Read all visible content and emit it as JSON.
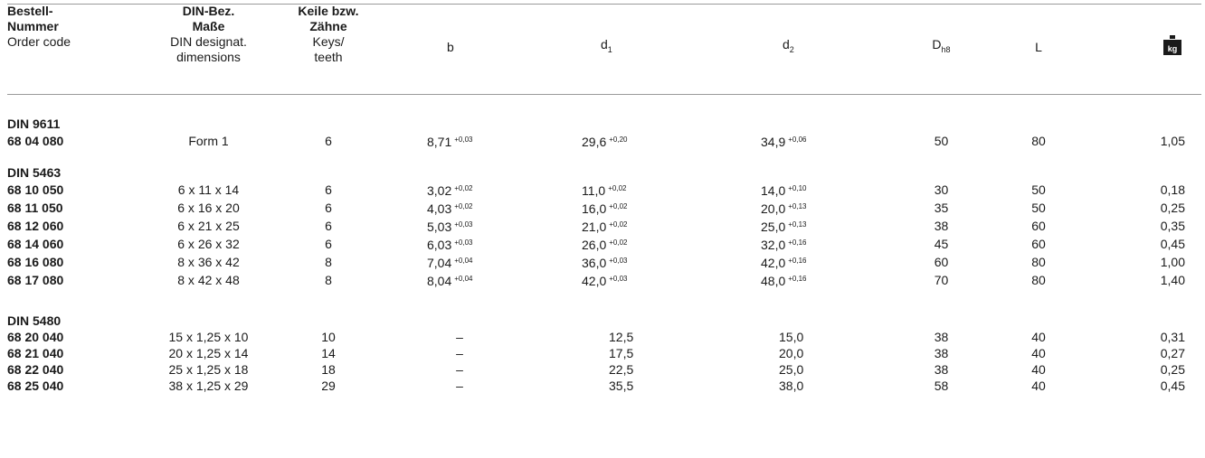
{
  "header": {
    "order_de_1": "Bestell-",
    "order_de_2": "Nummer",
    "order_en": "Order code",
    "din_de_1": "DIN-Bez.",
    "din_de_2": "Maße",
    "din_en_1": "DIN designat.",
    "din_en_2": "dimensions",
    "keys_de_1": "Keile bzw.",
    "keys_de_2": "Zähne",
    "keys_en_1": "Keys/",
    "keys_en_2": "teeth",
    "b": "b",
    "d1_base": "d",
    "d1_sub": "1",
    "d2_base": "d",
    "d2_sub": "2",
    "D_base": "D",
    "D_sub": "h8",
    "L": "L",
    "weight_icon_label": "kg",
    "weight_icon": "weight-icon"
  },
  "groups": [
    {
      "title": "DIN 9611",
      "rows": [
        {
          "code": "68 04 080",
          "desig": "Form 1",
          "keys": "6",
          "b": "8,71",
          "b_tol": "+0,03",
          "d1": "29,6",
          "d1_tol": "+0,20",
          "d2": "34,9",
          "d2_tol": "+0,06",
          "D": "50",
          "L": "80",
          "kg": "1,05"
        }
      ]
    },
    {
      "title": "DIN 5463",
      "rows": [
        {
          "code": "68 10 050",
          "desig": "6 x 11 x 14",
          "keys": "6",
          "b": "3,02",
          "b_tol": "+0,02",
          "d1": "11,0",
          "d1_tol": "+0,02",
          "d2": "14,0",
          "d2_tol": "+0,10",
          "D": "30",
          "L": "50",
          "kg": "0,18"
        },
        {
          "code": "68 11 050",
          "desig": "6 x 16 x 20",
          "keys": "6",
          "b": "4,03",
          "b_tol": "+0,02",
          "d1": "16,0",
          "d1_tol": "+0,02",
          "d2": "20,0",
          "d2_tol": "+0,13",
          "D": "35",
          "L": "50",
          "kg": "0,25"
        },
        {
          "code": "68 12 060",
          "desig": "6 x 21 x 25",
          "keys": "6",
          "b": "5,03",
          "b_tol": "+0,03",
          "d1": "21,0",
          "d1_tol": "+0,02",
          "d2": "25,0",
          "d2_tol": "+0,13",
          "D": "38",
          "L": "60",
          "kg": "0,35"
        },
        {
          "code": "68 14 060",
          "desig": "6 x 26 x 32",
          "keys": "6",
          "b": "6,03",
          "b_tol": "+0,03",
          "d1": "26,0",
          "d1_tol": "+0,02",
          "d2": "32,0",
          "d2_tol": "+0,16",
          "D": "45",
          "L": "60",
          "kg": "0,45"
        },
        {
          "code": "68 16 080",
          "desig": "8 x 36 x 42",
          "keys": "8",
          "b": "7,04",
          "b_tol": "+0,04",
          "d1": "36,0",
          "d1_tol": "+0,03",
          "d2": "42,0",
          "d2_tol": "+0,16",
          "D": "60",
          "L": "80",
          "kg": "1,00"
        },
        {
          "code": "68 17 080",
          "desig": "8 x 42 x 48",
          "keys": "8",
          "b": "8,04",
          "b_tol": "+0,04",
          "d1": "42,0",
          "d1_tol": "+0,03",
          "d2": "48,0",
          "d2_tol": "+0,16",
          "D": "70",
          "L": "80",
          "kg": "1,40"
        }
      ]
    },
    {
      "title": "DIN 5480",
      "rows": [
        {
          "code": "68 20 040",
          "desig": "15 x 1,25 x 10",
          "keys": "10",
          "b": "–",
          "b_tol": "",
          "d1": "12,5",
          "d1_tol": "",
          "d2": "15,0",
          "d2_tol": "",
          "D": "38",
          "L": "40",
          "kg": "0,31"
        },
        {
          "code": "68 21 040",
          "desig": "20 x 1,25 x 14",
          "keys": "14",
          "b": "–",
          "b_tol": "",
          "d1": "17,5",
          "d1_tol": "",
          "d2": "20,0",
          "d2_tol": "",
          "D": "38",
          "L": "40",
          "kg": "0,27"
        },
        {
          "code": "68 22 040",
          "desig": "25 x 1,25 x 18",
          "keys": "18",
          "b": "–",
          "b_tol": "",
          "d1": "22,5",
          "d1_tol": "",
          "d2": "25,0",
          "d2_tol": "",
          "D": "38",
          "L": "40",
          "kg": "0,25"
        },
        {
          "code": "68 25 040",
          "desig": "38 x 1,25 x 29",
          "keys": "29",
          "b": "–",
          "b_tol": "",
          "d1": "35,5",
          "d1_tol": "",
          "d2": "38,0",
          "d2_tol": "",
          "D": "58",
          "L": "40",
          "kg": "0,45"
        }
      ]
    }
  ]
}
